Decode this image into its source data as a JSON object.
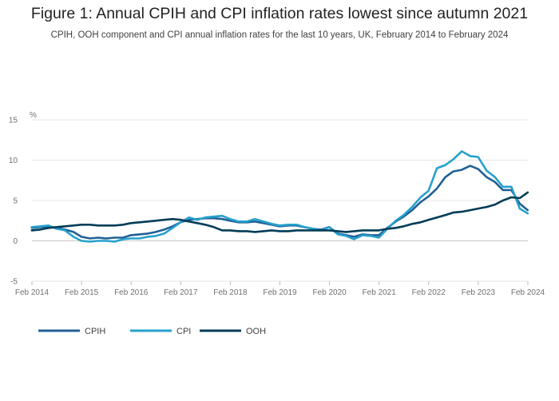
{
  "chart_data": {
    "type": "line",
    "title": "Figure 1: Annual CPIH and CPI inflation rates lowest since autumn 2021",
    "subtitle": "CPIH, OOH component and CPI annual inflation rates for the last 10 years, UK, February 2014 to February 2024",
    "ylabel": "%",
    "ylim": [
      -5,
      15
    ],
    "yticks": [
      "15",
      "10",
      "5",
      "0",
      "-5"
    ],
    "xlim": [
      2014.0833,
      2024.0833
    ],
    "xticks": [
      "Feb 2014",
      "Feb 2015",
      "Feb 2016",
      "Feb 2017",
      "Feb 2018",
      "Feb 2019",
      "Feb 2020",
      "Feb 2021",
      "Feb 2022",
      "Feb 2023",
      "Feb 2024"
    ],
    "legend_position": "bottom-left",
    "series": [
      {
        "name": "CPIH",
        "color": "#206095",
        "points": [
          [
            2014.08,
            1.6
          ],
          [
            2014.25,
            1.7
          ],
          [
            2014.42,
            1.8
          ],
          [
            2014.58,
            1.6
          ],
          [
            2014.75,
            1.4
          ],
          [
            2014.92,
            1.1
          ],
          [
            2015.08,
            0.5
          ],
          [
            2015.25,
            0.3
          ],
          [
            2015.42,
            0.4
          ],
          [
            2015.58,
            0.3
          ],
          [
            2015.75,
            0.4
          ],
          [
            2015.92,
            0.4
          ],
          [
            2016.08,
            0.7
          ],
          [
            2016.25,
            0.8
          ],
          [
            2016.42,
            0.9
          ],
          [
            2016.58,
            1.1
          ],
          [
            2016.75,
            1.4
          ],
          [
            2016.92,
            1.8
          ],
          [
            2017.08,
            2.3
          ],
          [
            2017.25,
            2.6
          ],
          [
            2017.42,
            2.7
          ],
          [
            2017.58,
            2.8
          ],
          [
            2017.75,
            2.8
          ],
          [
            2017.92,
            2.7
          ],
          [
            2018.08,
            2.5
          ],
          [
            2018.25,
            2.3
          ],
          [
            2018.42,
            2.3
          ],
          [
            2018.58,
            2.4
          ],
          [
            2018.75,
            2.2
          ],
          [
            2018.92,
            2.0
          ],
          [
            2019.08,
            1.8
          ],
          [
            2019.25,
            1.9
          ],
          [
            2019.42,
            1.9
          ],
          [
            2019.58,
            1.7
          ],
          [
            2019.75,
            1.5
          ],
          [
            2019.92,
            1.4
          ],
          [
            2020.08,
            1.7
          ],
          [
            2020.25,
            0.9
          ],
          [
            2020.42,
            0.7
          ],
          [
            2020.58,
            0.5
          ],
          [
            2020.75,
            0.8
          ],
          [
            2020.92,
            0.7
          ],
          [
            2021.08,
            0.7
          ],
          [
            2021.25,
            1.6
          ],
          [
            2021.42,
            2.4
          ],
          [
            2021.58,
            3.0
          ],
          [
            2021.75,
            3.8
          ],
          [
            2021.92,
            4.8
          ],
          [
            2022.08,
            5.5
          ],
          [
            2022.25,
            6.5
          ],
          [
            2022.42,
            7.9
          ],
          [
            2022.58,
            8.6
          ],
          [
            2022.75,
            8.8
          ],
          [
            2022.92,
            9.3
          ],
          [
            2023.08,
            8.9
          ],
          [
            2023.25,
            7.9
          ],
          [
            2023.42,
            7.3
          ],
          [
            2023.58,
            6.3
          ],
          [
            2023.75,
            6.3
          ],
          [
            2023.92,
            4.6
          ],
          [
            2024.08,
            3.8
          ]
        ]
      },
      {
        "name": "CPI",
        "color": "#27a0cc",
        "points": [
          [
            2014.08,
            1.7
          ],
          [
            2014.25,
            1.8
          ],
          [
            2014.42,
            1.9
          ],
          [
            2014.58,
            1.5
          ],
          [
            2014.75,
            1.3
          ],
          [
            2014.92,
            0.5
          ],
          [
            2015.08,
            0.0
          ],
          [
            2015.25,
            -0.1
          ],
          [
            2015.42,
            0.0
          ],
          [
            2015.58,
            0.0
          ],
          [
            2015.75,
            -0.1
          ],
          [
            2015.92,
            0.2
          ],
          [
            2016.08,
            0.3
          ],
          [
            2016.25,
            0.3
          ],
          [
            2016.42,
            0.5
          ],
          [
            2016.58,
            0.6
          ],
          [
            2016.75,
            0.9
          ],
          [
            2016.92,
            1.6
          ],
          [
            2017.08,
            2.3
          ],
          [
            2017.25,
            2.9
          ],
          [
            2017.42,
            2.6
          ],
          [
            2017.58,
            2.9
          ],
          [
            2017.75,
            3.0
          ],
          [
            2017.92,
            3.1
          ],
          [
            2018.08,
            2.7
          ],
          [
            2018.25,
            2.4
          ],
          [
            2018.42,
            2.4
          ],
          [
            2018.58,
            2.7
          ],
          [
            2018.75,
            2.4
          ],
          [
            2018.92,
            2.1
          ],
          [
            2019.08,
            1.9
          ],
          [
            2019.25,
            2.0
          ],
          [
            2019.42,
            2.0
          ],
          [
            2019.58,
            1.7
          ],
          [
            2019.75,
            1.5
          ],
          [
            2019.92,
            1.3
          ],
          [
            2020.08,
            1.7
          ],
          [
            2020.25,
            0.8
          ],
          [
            2020.42,
            0.6
          ],
          [
            2020.58,
            0.2
          ],
          [
            2020.75,
            0.7
          ],
          [
            2020.92,
            0.6
          ],
          [
            2021.08,
            0.4
          ],
          [
            2021.25,
            1.5
          ],
          [
            2021.42,
            2.5
          ],
          [
            2021.58,
            3.2
          ],
          [
            2021.75,
            4.2
          ],
          [
            2021.92,
            5.4
          ],
          [
            2022.08,
            6.2
          ],
          [
            2022.25,
            9.0
          ],
          [
            2022.42,
            9.4
          ],
          [
            2022.58,
            10.1
          ],
          [
            2022.75,
            11.1
          ],
          [
            2022.92,
            10.5
          ],
          [
            2023.08,
            10.4
          ],
          [
            2023.25,
            8.7
          ],
          [
            2023.42,
            7.9
          ],
          [
            2023.58,
            6.7
          ],
          [
            2023.75,
            6.7
          ],
          [
            2023.92,
            4.0
          ],
          [
            2024.08,
            3.4
          ]
        ]
      },
      {
        "name": "OOH",
        "color": "#003c57",
        "points": [
          [
            2014.08,
            1.3
          ],
          [
            2014.25,
            1.4
          ],
          [
            2014.42,
            1.6
          ],
          [
            2014.58,
            1.7
          ],
          [
            2014.75,
            1.8
          ],
          [
            2014.92,
            1.9
          ],
          [
            2015.08,
            2.0
          ],
          [
            2015.25,
            2.0
          ],
          [
            2015.42,
            1.9
          ],
          [
            2015.58,
            1.9
          ],
          [
            2015.75,
            1.9
          ],
          [
            2015.92,
            2.0
          ],
          [
            2016.08,
            2.2
          ],
          [
            2016.25,
            2.3
          ],
          [
            2016.42,
            2.4
          ],
          [
            2016.58,
            2.5
          ],
          [
            2016.75,
            2.6
          ],
          [
            2016.92,
            2.7
          ],
          [
            2017.08,
            2.6
          ],
          [
            2017.25,
            2.4
          ],
          [
            2017.42,
            2.2
          ],
          [
            2017.58,
            2.0
          ],
          [
            2017.75,
            1.7
          ],
          [
            2017.92,
            1.3
          ],
          [
            2018.08,
            1.3
          ],
          [
            2018.25,
            1.2
          ],
          [
            2018.42,
            1.2
          ],
          [
            2018.58,
            1.1
          ],
          [
            2018.75,
            1.2
          ],
          [
            2018.92,
            1.3
          ],
          [
            2019.08,
            1.2
          ],
          [
            2019.25,
            1.2
          ],
          [
            2019.42,
            1.3
          ],
          [
            2019.58,
            1.3
          ],
          [
            2019.75,
            1.3
          ],
          [
            2019.92,
            1.3
          ],
          [
            2020.08,
            1.3
          ],
          [
            2020.25,
            1.2
          ],
          [
            2020.42,
            1.1
          ],
          [
            2020.58,
            1.2
          ],
          [
            2020.75,
            1.3
          ],
          [
            2020.92,
            1.3
          ],
          [
            2021.08,
            1.3
          ],
          [
            2021.25,
            1.5
          ],
          [
            2021.42,
            1.6
          ],
          [
            2021.58,
            1.8
          ],
          [
            2021.75,
            2.1
          ],
          [
            2021.92,
            2.3
          ],
          [
            2022.08,
            2.6
          ],
          [
            2022.25,
            2.9
          ],
          [
            2022.42,
            3.2
          ],
          [
            2022.58,
            3.5
          ],
          [
            2022.75,
            3.6
          ],
          [
            2022.92,
            3.8
          ],
          [
            2023.08,
            4.0
          ],
          [
            2023.25,
            4.2
          ],
          [
            2023.42,
            4.5
          ],
          [
            2023.58,
            5.0
          ],
          [
            2023.75,
            5.4
          ],
          [
            2023.92,
            5.3
          ],
          [
            2024.08,
            6.0
          ]
        ]
      }
    ]
  }
}
